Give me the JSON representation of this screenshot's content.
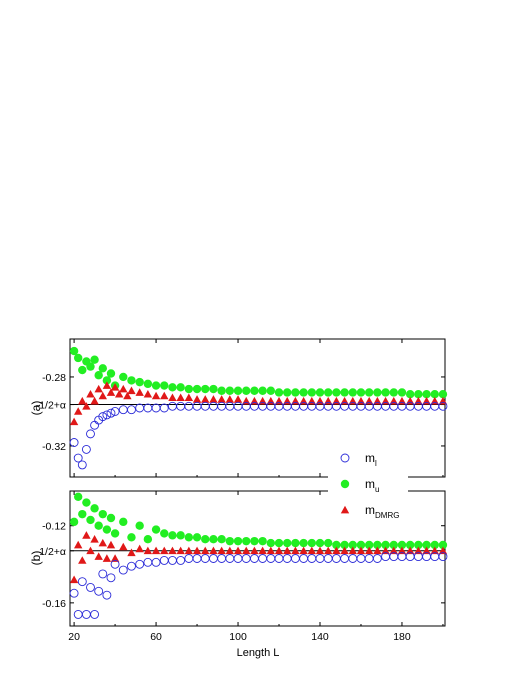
{
  "chart_data": [
    {
      "panel_label": "(a)",
      "type": "scatter",
      "x_range": [
        18,
        201
      ],
      "y_range": [
        -0.338,
        -0.258
      ],
      "x_ticks": [
        20,
        60,
        100,
        140,
        180
      ],
      "y_ticks": [
        {
          "value": -0.28,
          "label": "-0.28"
        },
        {
          "value": -0.296,
          "label": "-1/2+α"
        },
        {
          "value": -0.32,
          "label": "-0.32"
        }
      ],
      "reference_line": -0.296,
      "legend": [
        {
          "key": "ml",
          "base": "m",
          "sub": "l",
          "marker": "open-circle",
          "color": "#2b2bd8"
        },
        {
          "key": "mu",
          "base": "m",
          "sub": "u",
          "marker": "filled-circle",
          "color": "#22ee22"
        },
        {
          "key": "mdmrg",
          "base": "m",
          "sub": "DMRG",
          "marker": "filled-triangle",
          "color": "#e01818"
        }
      ],
      "legend_position": "bottom-right",
      "series": [
        {
          "key": "mu",
          "x": [
            20,
            22,
            24,
            26,
            28,
            30,
            32,
            34,
            36,
            38,
            40,
            44,
            48,
            52,
            56,
            60,
            64,
            68,
            72,
            76,
            80,
            84,
            88,
            92,
            96,
            100,
            104,
            108,
            112,
            116,
            120,
            124,
            128,
            132,
            136,
            140,
            144,
            148,
            152,
            156,
            160,
            164,
            168,
            172,
            176,
            180,
            184,
            188,
            192,
            196,
            200
          ],
          "y": [
            -0.265,
            -0.269,
            -0.276,
            -0.271,
            -0.274,
            -0.27,
            -0.279,
            -0.275,
            -0.282,
            -0.278,
            -0.285,
            -0.28,
            -0.282,
            -0.283,
            -0.284,
            -0.285,
            -0.285,
            -0.286,
            -0.286,
            -0.287,
            -0.287,
            -0.287,
            -0.287,
            -0.288,
            -0.288,
            -0.288,
            -0.288,
            -0.288,
            -0.288,
            -0.288,
            -0.289,
            -0.289,
            -0.289,
            -0.289,
            -0.289,
            -0.289,
            -0.289,
            -0.289,
            -0.289,
            -0.289,
            -0.289,
            -0.289,
            -0.289,
            -0.289,
            -0.289,
            -0.289,
            -0.29,
            -0.29,
            -0.29,
            -0.29,
            -0.29
          ]
        },
        {
          "key": "mdmrg",
          "x": [
            20,
            22,
            24,
            26,
            28,
            30,
            32,
            34,
            36,
            38,
            40,
            42,
            44,
            46,
            48,
            52,
            56,
            60,
            64,
            68,
            72,
            76,
            80,
            84,
            88,
            92,
            96,
            100,
            104,
            108,
            112,
            116,
            120,
            124,
            128,
            132,
            136,
            140,
            144,
            148,
            152,
            156,
            160,
            164,
            168,
            172,
            176,
            180,
            184,
            188,
            192,
            196,
            200
          ],
          "y": [
            -0.306,
            -0.3,
            -0.294,
            -0.297,
            -0.29,
            -0.294,
            -0.287,
            -0.291,
            -0.285,
            -0.289,
            -0.286,
            -0.29,
            -0.287,
            -0.291,
            -0.288,
            -0.289,
            -0.29,
            -0.291,
            -0.291,
            -0.292,
            -0.292,
            -0.292,
            -0.293,
            -0.293,
            -0.293,
            -0.293,
            -0.293,
            -0.293,
            -0.294,
            -0.294,
            -0.294,
            -0.294,
            -0.294,
            -0.294,
            -0.294,
            -0.294,
            -0.294,
            -0.294,
            -0.294,
            -0.294,
            -0.294,
            -0.294,
            -0.294,
            -0.294,
            -0.294,
            -0.294,
            -0.294,
            -0.294,
            -0.294,
            -0.294,
            -0.294,
            -0.294,
            -0.294
          ]
        },
        {
          "key": "ml",
          "x": [
            20,
            22,
            24,
            26,
            28,
            30,
            32,
            34,
            36,
            38,
            40,
            44,
            48,
            52,
            56,
            60,
            64,
            68,
            72,
            76,
            80,
            84,
            88,
            92,
            96,
            100,
            104,
            108,
            112,
            116,
            120,
            124,
            128,
            132,
            136,
            140,
            144,
            148,
            152,
            156,
            160,
            164,
            168,
            172,
            176,
            180,
            184,
            188,
            192,
            196,
            200
          ],
          "y": [
            -0.318,
            -0.327,
            -0.331,
            -0.322,
            -0.313,
            -0.308,
            -0.305,
            -0.303,
            -0.302,
            -0.301,
            -0.3,
            -0.299,
            -0.299,
            -0.298,
            -0.298,
            -0.298,
            -0.298,
            -0.297,
            -0.297,
            -0.297,
            -0.297,
            -0.297,
            -0.297,
            -0.297,
            -0.297,
            -0.297,
            -0.297,
            -0.297,
            -0.297,
            -0.297,
            -0.297,
            -0.297,
            -0.297,
            -0.297,
            -0.297,
            -0.297,
            -0.297,
            -0.297,
            -0.297,
            -0.297,
            -0.297,
            -0.297,
            -0.297,
            -0.297,
            -0.297,
            -0.297,
            -0.297,
            -0.297,
            -0.297,
            -0.297,
            -0.297
          ]
        }
      ]
    },
    {
      "panel_label": "(b)",
      "type": "scatter",
      "x_range": [
        18,
        201
      ],
      "y_range": [
        -0.172,
        -0.102
      ],
      "x_ticks": [
        20,
        60,
        100,
        140,
        180
      ],
      "y_ticks": [
        {
          "value": -0.12,
          "label": "-0.12"
        },
        {
          "value": -0.133,
          "label": "-1/2+α"
        },
        {
          "value": -0.16,
          "label": "-0.16"
        }
      ],
      "reference_line": -0.133,
      "series": [
        {
          "key": "mu",
          "x": [
            20,
            22,
            24,
            26,
            28,
            30,
            32,
            34,
            36,
            38,
            40,
            44,
            48,
            52,
            56,
            60,
            64,
            68,
            72,
            76,
            80,
            84,
            88,
            92,
            96,
            100,
            104,
            108,
            112,
            116,
            120,
            124,
            128,
            132,
            136,
            140,
            144,
            148,
            152,
            156,
            160,
            164,
            168,
            172,
            176,
            180,
            184,
            188,
            192,
            196,
            200
          ],
          "y": [
            -0.118,
            -0.105,
            -0.114,
            -0.108,
            -0.117,
            -0.111,
            -0.12,
            -0.114,
            -0.122,
            -0.116,
            -0.124,
            -0.118,
            -0.126,
            -0.12,
            -0.127,
            -0.122,
            -0.124,
            -0.125,
            -0.125,
            -0.126,
            -0.126,
            -0.127,
            -0.127,
            -0.127,
            -0.128,
            -0.128,
            -0.128,
            -0.128,
            -0.128,
            -0.129,
            -0.129,
            -0.129,
            -0.129,
            -0.129,
            -0.129,
            -0.129,
            -0.129,
            -0.13,
            -0.13,
            -0.13,
            -0.13,
            -0.13,
            -0.13,
            -0.13,
            -0.13,
            -0.13,
            -0.13,
            -0.13,
            -0.13,
            -0.13,
            -0.13
          ]
        },
        {
          "key": "mdmrg",
          "x": [
            20,
            22,
            24,
            26,
            28,
            30,
            32,
            34,
            36,
            38,
            40,
            44,
            48,
            52,
            56,
            60,
            64,
            68,
            72,
            76,
            80,
            84,
            88,
            92,
            96,
            100,
            104,
            108,
            112,
            116,
            120,
            124,
            128,
            132,
            136,
            140,
            144,
            148,
            152,
            156,
            160,
            164,
            168,
            172,
            176,
            180,
            184,
            188,
            192,
            196,
            200
          ],
          "y": [
            -0.148,
            -0.13,
            -0.138,
            -0.125,
            -0.133,
            -0.127,
            -0.136,
            -0.129,
            -0.137,
            -0.13,
            -0.137,
            -0.131,
            -0.134,
            -0.132,
            -0.133,
            -0.133,
            -0.133,
            -0.133,
            -0.133,
            -0.133,
            -0.133,
            -0.133,
            -0.133,
            -0.133,
            -0.133,
            -0.133,
            -0.133,
            -0.133,
            -0.133,
            -0.133,
            -0.133,
            -0.133,
            -0.133,
            -0.133,
            -0.133,
            -0.133,
            -0.133,
            -0.133,
            -0.133,
            -0.133,
            -0.133,
            -0.133,
            -0.133,
            -0.133,
            -0.133,
            -0.133,
            -0.133,
            -0.133,
            -0.133,
            -0.133,
            -0.133
          ]
        },
        {
          "key": "ml",
          "x": [
            20,
            22,
            24,
            26,
            28,
            30,
            32,
            34,
            36,
            38,
            40,
            44,
            48,
            52,
            56,
            60,
            64,
            68,
            72,
            76,
            80,
            84,
            88,
            92,
            96,
            100,
            104,
            108,
            112,
            116,
            120,
            124,
            128,
            132,
            136,
            140,
            144,
            148,
            152,
            156,
            160,
            164,
            168,
            172,
            176,
            180,
            184,
            188,
            192,
            196,
            200
          ],
          "y": [
            -0.155,
            -0.166,
            -0.149,
            -0.166,
            -0.152,
            -0.166,
            -0.154,
            -0.145,
            -0.156,
            -0.147,
            -0.14,
            -0.143,
            -0.141,
            -0.14,
            -0.139,
            -0.139,
            -0.138,
            -0.138,
            -0.138,
            -0.137,
            -0.137,
            -0.137,
            -0.137,
            -0.137,
            -0.137,
            -0.137,
            -0.137,
            -0.137,
            -0.137,
            -0.137,
            -0.137,
            -0.137,
            -0.137,
            -0.137,
            -0.137,
            -0.137,
            -0.137,
            -0.137,
            -0.137,
            -0.137,
            -0.137,
            -0.137,
            -0.137,
            -0.136,
            -0.136,
            -0.136,
            -0.136,
            -0.136,
            -0.136,
            -0.136,
            -0.136
          ]
        }
      ]
    }
  ],
  "x_axis_label": "Length L"
}
